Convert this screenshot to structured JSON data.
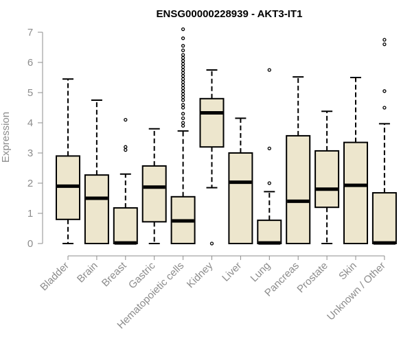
{
  "chart_data": {
    "type": "box",
    "title": "ENSG00000228939 - AKT3-IT1",
    "xlabel": "",
    "ylabel": "Expression",
    "ylim": [
      0,
      7
    ],
    "yticks": [
      0,
      1,
      2,
      3,
      4,
      5,
      6,
      7
    ],
    "grid": false,
    "legend": "none",
    "box_fill": "#ede6cd",
    "categories": [
      "Bladder",
      "Brain",
      "Breast",
      "Gastric",
      "Hematopoietic cells",
      "Kidney",
      "Liver",
      "Lung",
      "Pancreas",
      "Prostate",
      "Skin",
      "Unknown / Other"
    ],
    "boxes": [
      {
        "category": "Bladder",
        "min": 0,
        "q1": 0.8,
        "median": 1.9,
        "q3": 2.9,
        "max": 5.45,
        "outliers": []
      },
      {
        "category": "Brain",
        "min": 0,
        "q1": 0,
        "median": 1.5,
        "q3": 2.27,
        "max": 4.75,
        "outliers": []
      },
      {
        "category": "Breast",
        "min": 0,
        "q1": 0,
        "median": 0.02,
        "q3": 1.18,
        "max": 2.3,
        "outliers": [
          3.1,
          3.2,
          4.1
        ]
      },
      {
        "category": "Gastric",
        "min": 0,
        "q1": 0.72,
        "median": 1.87,
        "q3": 2.57,
        "max": 3.8,
        "outliers": []
      },
      {
        "category": "Hematopoietic cells",
        "min": 0,
        "q1": 0,
        "median": 0.75,
        "q3": 1.55,
        "max": 3.73,
        "outliers": [
          3.9,
          4.0,
          4.15,
          4.3,
          4.5,
          4.6,
          4.75,
          4.85,
          4.95,
          5.05,
          5.15,
          5.25,
          5.35,
          5.45,
          5.55,
          5.65,
          5.75,
          5.85,
          5.95,
          6.05,
          6.15,
          6.25,
          6.4,
          6.55,
          6.8,
          7.1
        ]
      },
      {
        "category": "Kidney",
        "min": 1.85,
        "q1": 3.2,
        "median": 4.33,
        "q3": 4.8,
        "max": 5.75,
        "outliers": [
          0
        ]
      },
      {
        "category": "Liver",
        "min": 0,
        "q1": 0,
        "median": 2.03,
        "q3": 3.0,
        "max": 4.15,
        "outliers": []
      },
      {
        "category": "Lung",
        "min": 0,
        "q1": 0,
        "median": 0.02,
        "q3": 0.77,
        "max": 1.72,
        "outliers": [
          2.0,
          3.15,
          5.75
        ]
      },
      {
        "category": "Pancreas",
        "min": 0,
        "q1": 0,
        "median": 1.4,
        "q3": 3.57,
        "max": 5.52,
        "outliers": []
      },
      {
        "category": "Prostate",
        "min": 0,
        "q1": 1.2,
        "median": 1.8,
        "q3": 3.07,
        "max": 4.38,
        "outliers": []
      },
      {
        "category": "Skin",
        "min": 0,
        "q1": 0,
        "median": 1.93,
        "q3": 3.35,
        "max": 5.5,
        "outliers": []
      },
      {
        "category": "Unknown / Other",
        "min": 0,
        "q1": 0,
        "median": 0.02,
        "q3": 1.68,
        "max": 3.97,
        "outliers": [
          4.5,
          5.05,
          6.6,
          6.75
        ]
      }
    ]
  }
}
